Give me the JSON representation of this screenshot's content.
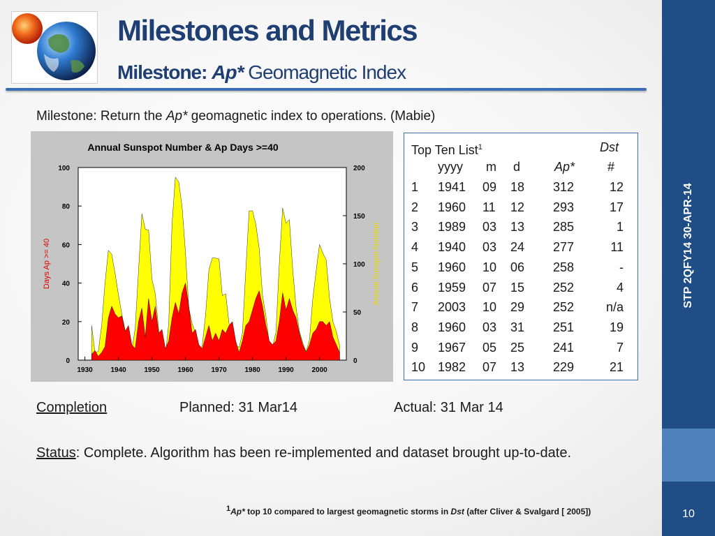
{
  "slide": {
    "title": "Milestones and Metrics",
    "subtitle_bold": "Milestone:",
    "subtitle_italic": "Ap*",
    "subtitle_rest": "Geomagnetic Index",
    "side_label": "STP 2QFY14 30-APR-14",
    "page_number": "10",
    "colors": {
      "band": "#1f4e86",
      "band_accent": "#4f81bd",
      "title": "#1f3f73",
      "rule": "#3d6db3"
    }
  },
  "milestone": {
    "prefix": "Milestone: Return the ",
    "ap": "Ap*",
    "suffix": " geomagnetic index to operations. (Mabie)"
  },
  "top_ten": {
    "title": "Top Ten List",
    "title_sup": "1",
    "dst_label": "Dst",
    "headers": {
      "yyyy": "yyyy",
      "m": "m",
      "d": "d",
      "ap": "Ap*",
      "hash": "#"
    },
    "rows": [
      {
        "rank": "1",
        "yyyy": "1941",
        "m": "09",
        "d": "18",
        "ap": "312",
        "dst": "12"
      },
      {
        "rank": "2",
        "yyyy": "1960",
        "m": "11",
        "d": "12",
        "ap": "293",
        "dst": "17"
      },
      {
        "rank": "3",
        "yyyy": "1989",
        "m": "03",
        "d": "13",
        "ap": "285",
        "dst": "1"
      },
      {
        "rank": "4",
        "yyyy": "1940",
        "m": "03",
        "d": "24",
        "ap": "277",
        "dst": "11"
      },
      {
        "rank": "5",
        "yyyy": "1960",
        "m": "10",
        "d": "06",
        "ap": "258",
        "dst": "-"
      },
      {
        "rank": "6",
        "yyyy": "1959",
        "m": "07",
        "d": "15",
        "ap": "252",
        "dst": "4"
      },
      {
        "rank": "7",
        "yyyy": "2003",
        "m": "10",
        "d": "29",
        "ap": "252",
        "dst": "n/a"
      },
      {
        "rank": "8",
        "yyyy": "1960",
        "m": "03",
        "d": "31",
        "ap": "251",
        "dst": "19"
      },
      {
        "rank": "9",
        "yyyy": "1967",
        "m": "05",
        "d": "25",
        "ap": "241",
        "dst": "7"
      },
      {
        "rank": "10",
        "yyyy": "1982",
        "m": "07",
        "d": "13",
        "ap": "229",
        "dst": "21"
      }
    ]
  },
  "completion": {
    "label": "Completion",
    "planned": "Planned: 31 Mar14",
    "actual": "Actual: 31 Mar 14"
  },
  "status": {
    "label": "Status",
    "text": ": Complete. Algorithm has been re-implemented and dataset brought up-to-date."
  },
  "footnote": {
    "sup": "1",
    "ap": "Ap*",
    "text1": " top 10 compared to largest geomagnetic storms in ",
    "dst": "Dst",
    "text2": " (after Cliver & Svalgard [ 2005])"
  },
  "chart_data": {
    "type": "area",
    "title": "Annual Sunspot Number & Ap Days >=40",
    "ylabel": "Days Ap >= 40",
    "y2label": "Annual Sunspot Number",
    "ylim": [
      0,
      100
    ],
    "y2lim": [
      0,
      200
    ],
    "xlim": [
      1928,
      2008
    ],
    "x_ticks": [
      "1930",
      "1940",
      "1950",
      "1960",
      "1970",
      "1980",
      "1990",
      "2000"
    ],
    "y_ticks": [
      "0",
      "20",
      "40",
      "60",
      "80",
      "100"
    ],
    "y2_ticks": [
      "0",
      "50",
      "100",
      "150",
      "200"
    ],
    "grid": false,
    "series": [
      {
        "name": "Annual Sunspot Number",
        "color": "#ffff00",
        "axis": "right",
        "x": [
          1932,
          1933,
          1934,
          1935,
          1936,
          1937,
          1938,
          1939,
          1940,
          1941,
          1942,
          1943,
          1944,
          1945,
          1946,
          1947,
          1948,
          1949,
          1950,
          1951,
          1952,
          1953,
          1954,
          1955,
          1956,
          1957,
          1958,
          1959,
          1960,
          1961,
          1962,
          1963,
          1964,
          1965,
          1966,
          1967,
          1968,
          1969,
          1970,
          1971,
          1972,
          1973,
          1974,
          1975,
          1976,
          1977,
          1978,
          1979,
          1980,
          1981,
          1982,
          1983,
          1984,
          1985,
          1986,
          1987,
          1988,
          1989,
          1990,
          1991,
          1992,
          1993,
          1994,
          1995,
          1996,
          1997,
          1998,
          1999,
          2000,
          2001,
          2002,
          2003,
          2004,
          2005,
          2006
        ],
        "values": [
          36,
          8,
          9,
          36,
          80,
          114,
          110,
          90,
          68,
          48,
          31,
          16,
          10,
          33,
          93,
          152,
          136,
          135,
          84,
          69,
          32,
          14,
          4,
          38,
          142,
          190,
          185,
          159,
          112,
          54,
          38,
          28,
          10,
          15,
          47,
          94,
          106,
          106,
          105,
          67,
          69,
          38,
          35,
          16,
          13,
          28,
          93,
          155,
          155,
          141,
          116,
          67,
          46,
          18,
          14,
          29,
          100,
          158,
          142,
          146,
          94,
          55,
          30,
          18,
          9,
          21,
          64,
          93,
          120,
          111,
          104,
          64,
          40,
          30,
          15
        ]
      },
      {
        "name": "Days Ap >= 40",
        "color": "#ff0000",
        "axis": "left",
        "x": [
          1932,
          1933,
          1934,
          1935,
          1936,
          1937,
          1938,
          1939,
          1940,
          1941,
          1942,
          1943,
          1944,
          1945,
          1946,
          1947,
          1948,
          1949,
          1950,
          1951,
          1952,
          1953,
          1954,
          1955,
          1956,
          1957,
          1958,
          1959,
          1960,
          1961,
          1962,
          1963,
          1964,
          1965,
          1966,
          1967,
          1968,
          1969,
          1970,
          1971,
          1972,
          1973,
          1974,
          1975,
          1976,
          1977,
          1978,
          1979,
          1980,
          1981,
          1982,
          1983,
          1984,
          1985,
          1986,
          1987,
          1988,
          1989,
          1990,
          1991,
          1992,
          1993,
          1994,
          1995,
          1996,
          1997,
          1998,
          1999,
          2000,
          2001,
          2002,
          2003,
          2004,
          2005,
          2006
        ],
        "values": [
          3,
          5,
          2,
          4,
          7,
          22,
          28,
          24,
          22,
          23,
          15,
          18,
          8,
          6,
          20,
          27,
          12,
          32,
          20,
          28,
          14,
          16,
          6,
          10,
          22,
          30,
          24,
          35,
          40,
          28,
          14,
          16,
          8,
          6,
          12,
          18,
          10,
          14,
          10,
          16,
          14,
          18,
          20,
          10,
          4,
          10,
          18,
          20,
          26,
          32,
          36,
          28,
          18,
          10,
          8,
          10,
          20,
          35,
          26,
          32,
          26,
          22,
          14,
          8,
          4,
          8,
          14,
          16,
          20,
          20,
          18,
          20,
          12,
          8,
          4
        ]
      }
    ]
  }
}
